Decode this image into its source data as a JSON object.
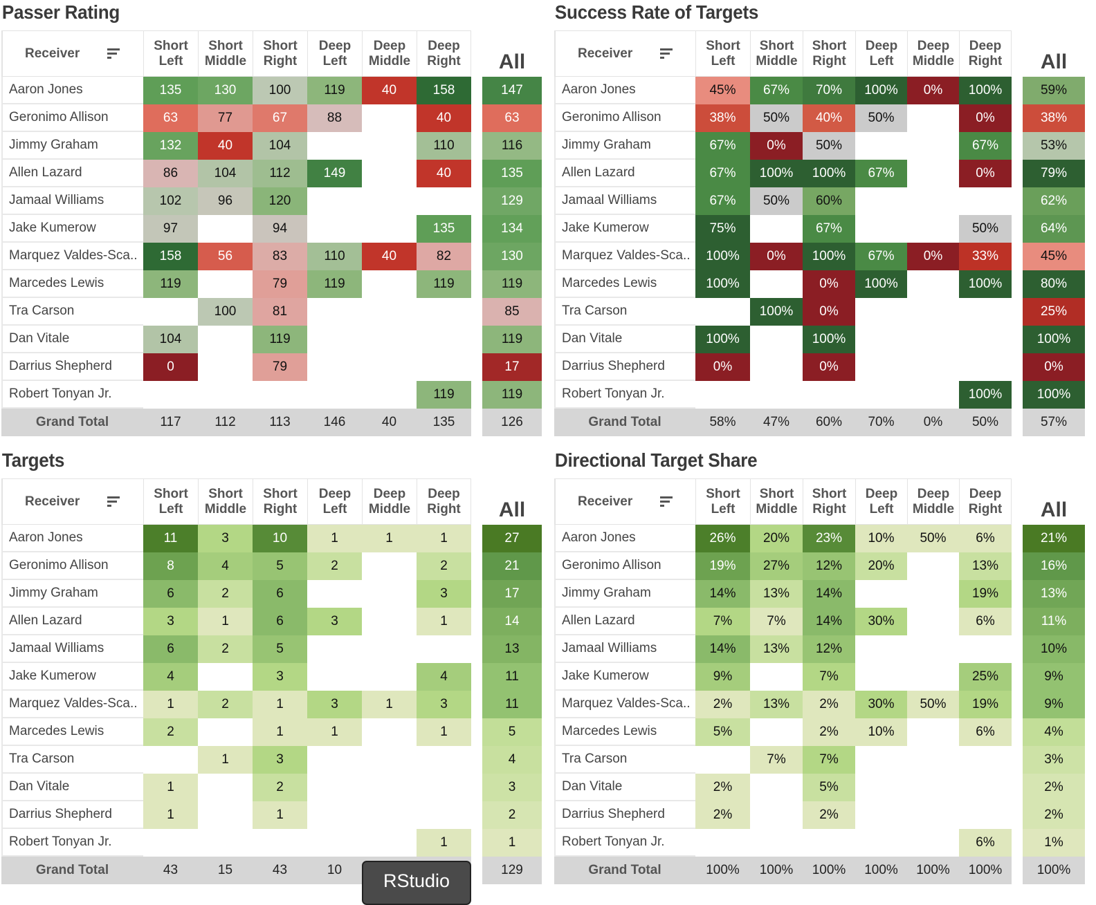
{
  "columns": [
    "Short\nLeft",
    "Short\nMiddle",
    "Short\nRight",
    "Deep\nLeft",
    "Deep\nMiddle",
    "Deep\nRight"
  ],
  "receiver_label": "Receiver",
  "all_label": "All",
  "grand_total_label": "Grand Total",
  "tooltip": "RStudio",
  "receivers": [
    "Aaron Jones",
    "Geronimo Allison",
    "Jimmy Graham",
    "Allen Lazard",
    "Jamaal Williams",
    "Jake Kumerow",
    "Marquez Valdes-Sca..",
    "Marcedes Lewis",
    "Tra Carson",
    "Dan Vitale",
    "Darrius Shepherd",
    "Robert Tonyan Jr."
  ],
  "panels": [
    {
      "title": "Passer Rating",
      "scale": "rating",
      "rows": [
        [
          "135",
          "130",
          "100",
          "119",
          "40",
          "158"
        ],
        [
          "63",
          "77",
          "67",
          "88",
          null,
          "40"
        ],
        [
          "132",
          "40",
          "104",
          null,
          null,
          "110"
        ],
        [
          "86",
          "104",
          "112",
          "149",
          null,
          "40"
        ],
        [
          "102",
          "96",
          "120",
          null,
          null,
          null
        ],
        [
          "97",
          null,
          "94",
          null,
          null,
          "135"
        ],
        [
          "158",
          "56",
          "83",
          "110",
          "40",
          "82"
        ],
        [
          "119",
          null,
          "79",
          "119",
          null,
          "119"
        ],
        [
          null,
          "100",
          "81",
          null,
          null,
          null
        ],
        [
          "104",
          null,
          "119",
          null,
          null,
          null
        ],
        [
          "0",
          null,
          "79",
          null,
          null,
          null
        ],
        [
          null,
          null,
          null,
          null,
          null,
          "119"
        ]
      ],
      "all": [
        "147",
        "63",
        "116",
        "135",
        "129",
        "134",
        "130",
        "119",
        "85",
        "119",
        "17",
        "119"
      ],
      "grand_total": [
        "117",
        "112",
        "113",
        "146",
        "40",
        "135"
      ],
      "grand_total_all": "126"
    },
    {
      "title": "Success Rate of Targets",
      "scale": "success",
      "rows": [
        [
          "45%",
          "67%",
          "70%",
          "100%",
          "0%",
          "100%"
        ],
        [
          "38%",
          "50%",
          "40%",
          "50%",
          null,
          "0%"
        ],
        [
          "67%",
          "0%",
          "50%",
          null,
          null,
          "67%"
        ],
        [
          "67%",
          "100%",
          "100%",
          "67%",
          null,
          "0%"
        ],
        [
          "67%",
          "50%",
          "60%",
          null,
          null,
          null
        ],
        [
          "75%",
          null,
          "67%",
          null,
          null,
          "50%"
        ],
        [
          "100%",
          "0%",
          "100%",
          "67%",
          "0%",
          "33%"
        ],
        [
          "100%",
          null,
          "0%",
          "100%",
          null,
          "100%"
        ],
        [
          null,
          "100%",
          "0%",
          null,
          null,
          null
        ],
        [
          "100%",
          null,
          "100%",
          null,
          null,
          null
        ],
        [
          "0%",
          null,
          "0%",
          null,
          null,
          null
        ],
        [
          null,
          null,
          null,
          null,
          null,
          "100%"
        ]
      ],
      "all": [
        "59%",
        "38%",
        "53%",
        "79%",
        "62%",
        "64%",
        "45%",
        "80%",
        "25%",
        "100%",
        "0%",
        "100%"
      ],
      "grand_total": [
        "58%",
        "47%",
        "60%",
        "70%",
        "0%",
        "50%"
      ],
      "grand_total_all": "57%"
    },
    {
      "title": "Targets",
      "scale": "count",
      "rows": [
        [
          "11",
          "3",
          "10",
          "1",
          "1",
          "1"
        ],
        [
          "8",
          "4",
          "5",
          "2",
          null,
          "2"
        ],
        [
          "6",
          "2",
          "6",
          null,
          null,
          "3"
        ],
        [
          "3",
          "1",
          "6",
          "3",
          null,
          "1"
        ],
        [
          "6",
          "2",
          "5",
          null,
          null,
          null
        ],
        [
          "4",
          null,
          "3",
          null,
          null,
          "4"
        ],
        [
          "1",
          "2",
          "1",
          "3",
          "1",
          "3"
        ],
        [
          "2",
          null,
          "1",
          "1",
          null,
          "1"
        ],
        [
          null,
          "1",
          "3",
          null,
          null,
          null
        ],
        [
          "1",
          null,
          "2",
          null,
          null,
          null
        ],
        [
          "1",
          null,
          "1",
          null,
          null,
          null
        ],
        [
          null,
          null,
          null,
          null,
          null,
          "1"
        ]
      ],
      "all": [
        "27",
        "21",
        "17",
        "14",
        "13",
        "11",
        "11",
        "5",
        "4",
        "3",
        "2",
        "1"
      ],
      "grand_total": [
        "43",
        "15",
        "43",
        "10",
        null,
        null
      ],
      "grand_total_all": "129"
    },
    {
      "title": "Directional Target Share",
      "scale": "share",
      "rows": [
        [
          "26%",
          "20%",
          "23%",
          "10%",
          "50%",
          "6%"
        ],
        [
          "19%",
          "27%",
          "12%",
          "20%",
          null,
          "13%"
        ],
        [
          "14%",
          "13%",
          "14%",
          null,
          null,
          "19%"
        ],
        [
          "7%",
          "7%",
          "14%",
          "30%",
          null,
          "6%"
        ],
        [
          "14%",
          "13%",
          "12%",
          null,
          null,
          null
        ],
        [
          "9%",
          null,
          "7%",
          null,
          null,
          "25%"
        ],
        [
          "2%",
          "13%",
          "2%",
          "30%",
          "50%",
          "19%"
        ],
        [
          "5%",
          null,
          "2%",
          "10%",
          null,
          "6%"
        ],
        [
          null,
          "7%",
          "7%",
          null,
          null,
          null
        ],
        [
          "2%",
          null,
          "5%",
          null,
          null,
          null
        ],
        [
          "2%",
          null,
          "2%",
          null,
          null,
          null
        ],
        [
          null,
          null,
          null,
          null,
          null,
          "6%"
        ]
      ],
      "all": [
        "21%",
        "16%",
        "13%",
        "11%",
        "10%",
        "9%",
        "9%",
        "4%",
        "3%",
        "2%",
        "2%",
        "1%"
      ],
      "grand_total": [
        "100%",
        "100%",
        "100%",
        "100%",
        "100%",
        "100%"
      ],
      "grand_total_all": "100%"
    }
  ]
}
